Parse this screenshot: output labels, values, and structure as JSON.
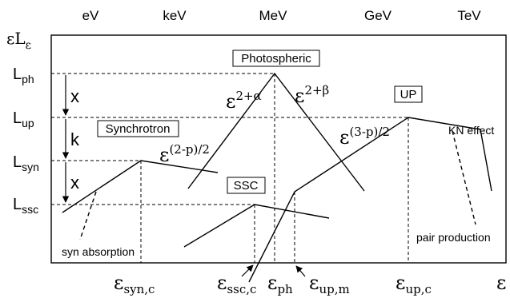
{
  "top_scale": [
    "eV",
    "keV",
    "MeV",
    "GeV",
    "TeV"
  ],
  "y_axis": {
    "title_main": "εL",
    "title_sub": "ε",
    "levels": [
      {
        "main": "L",
        "sub": "ph"
      },
      {
        "main": "L",
        "sub": "up"
      },
      {
        "main": "L",
        "sub": "syn"
      },
      {
        "main": "L",
        "sub": "ssc"
      }
    ]
  },
  "gaps": {
    "x1": "x",
    "k": "k",
    "x2": "x"
  },
  "components": {
    "photospheric": "Photospheric",
    "synchrotron": "Synchrotron",
    "ssc": "SSC",
    "up": "UP"
  },
  "slopes": {
    "ph_rise": {
      "base": "ε",
      "exp": "2+α"
    },
    "ph_fall": {
      "base": "ε",
      "exp": "2+β"
    },
    "syn": {
      "base": "ε",
      "exp": "(2-p)/2"
    },
    "up": {
      "base": "ε",
      "exp": "(3-p)/2"
    }
  },
  "notes": {
    "kn": "KN effect",
    "pair": "pair production",
    "absorption": "syn absorption"
  },
  "x_axis": {
    "ticks": [
      {
        "main": "ε",
        "sub": "syn,c"
      },
      {
        "main": "ε",
        "sub": "ssc,c"
      },
      {
        "main": "ε",
        "sub": "ph"
      },
      {
        "main": "ε",
        "sub": "up,m"
      },
      {
        "main": "ε",
        "sub": "up,c"
      }
    ],
    "end_label": "ε"
  }
}
